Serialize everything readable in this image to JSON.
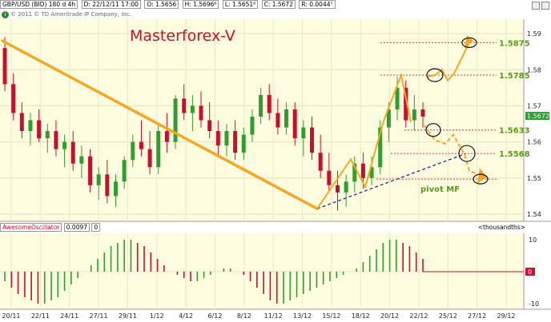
{
  "header": {
    "symbol": "GBP/USD (BID) 180 d 4h",
    "datetime": "D: 22/12/11 17:00",
    "open": "O: 1.5656",
    "high": "H: 1.5696⁶",
    "low": "L: 1.5651⁸",
    "close": "C: 1.5672",
    "range": "R: 0.0044⁷"
  },
  "copyright": "© 2011 © TD Ameritrade IP Company, Inc.",
  "copyright_icon": "info-icon",
  "title": "Masterforex-V",
  "price_axis": {
    "ticks": [
      "1.59",
      "1.58",
      "1.57",
      "1.56",
      "1.55",
      "1.54"
    ],
    "current_price": "1.5672",
    "current_color": "#2e9e2e"
  },
  "levels": [
    {
      "value": "1.5875",
      "price": 1.5875
    },
    {
      "value": "1.5785",
      "price": 1.5785
    },
    {
      "value": "1.5633",
      "price": 1.5633
    },
    {
      "value": "1.5568",
      "price": 1.5568
    }
  ],
  "pivot_label": "pivot MF",
  "pivot_price": 1.5497,
  "x_axis": [
    "20/11",
    "22/11",
    "24/11",
    "27/11",
    "29/11",
    "1/12",
    "4/12",
    "6/12",
    "8/12",
    "11/12",
    "13/12",
    "15/12",
    "18/12",
    "20/12",
    "22/12",
    "25/12",
    "27/12",
    "29/12"
  ],
  "oscillator": {
    "name": "AwesomeOscillator",
    "value": "0.0097",
    "extra": "0",
    "units": "<thousandths>",
    "ticks": [
      "10",
      "0",
      "-10"
    ],
    "zero_label": "0"
  },
  "colors": {
    "chart_bg": "#fffde0",
    "up": "#2e9e2e",
    "down": "#c8102e",
    "trend": "#f5a623",
    "support": "#1f2a9b",
    "level_line": "#e23b3b",
    "level_text": "#5a9a1e",
    "title": "#c8102e"
  },
  "chart_data": {
    "type": "candlestick",
    "price_range": [
      1.538,
      1.594
    ],
    "candles": [
      [
        1.586,
        1.589,
        1.574,
        1.576
      ],
      [
        1.576,
        1.579,
        1.566,
        1.568
      ],
      [
        1.568,
        1.571,
        1.561,
        1.563
      ],
      [
        1.563,
        1.568,
        1.559,
        1.566
      ],
      [
        1.566,
        1.569,
        1.56,
        1.561
      ],
      [
        1.561,
        1.565,
        1.557,
        1.563
      ],
      [
        1.563,
        1.566,
        1.556,
        1.558
      ],
      [
        1.558,
        1.562,
        1.553,
        1.56
      ],
      [
        1.56,
        1.563,
        1.552,
        1.554
      ],
      [
        1.554,
        1.559,
        1.55,
        1.556
      ],
      [
        1.556,
        1.558,
        1.546,
        1.548
      ],
      [
        1.548,
        1.553,
        1.544,
        1.551
      ],
      [
        1.551,
        1.555,
        1.543,
        1.545
      ],
      [
        1.545,
        1.551,
        1.542,
        1.549
      ],
      [
        1.549,
        1.556,
        1.547,
        1.555
      ],
      [
        1.555,
        1.562,
        1.553,
        1.56
      ],
      [
        1.56,
        1.566,
        1.556,
        1.558
      ],
      [
        1.558,
        1.563,
        1.551,
        1.553
      ],
      [
        1.553,
        1.565,
        1.551,
        1.563
      ],
      [
        1.563,
        1.568,
        1.557,
        1.56
      ],
      [
        1.56,
        1.573,
        1.558,
        1.572
      ],
      [
        1.572,
        1.576,
        1.566,
        1.568
      ],
      [
        1.568,
        1.573,
        1.563,
        1.57
      ],
      [
        1.57,
        1.574,
        1.564,
        1.566
      ],
      [
        1.566,
        1.571,
        1.561,
        1.563
      ],
      [
        1.563,
        1.566,
        1.556,
        1.559
      ],
      [
        1.559,
        1.565,
        1.556,
        1.563
      ],
      [
        1.563,
        1.566,
        1.555,
        1.557
      ],
      [
        1.557,
        1.564,
        1.555,
        1.562
      ],
      [
        1.562,
        1.569,
        1.56,
        1.567
      ],
      [
        1.567,
        1.575,
        1.565,
        1.573
      ],
      [
        1.573,
        1.576,
        1.566,
        1.568
      ],
      [
        1.568,
        1.572,
        1.562,
        1.564
      ],
      [
        1.564,
        1.571,
        1.562,
        1.569
      ],
      [
        1.569,
        1.571,
        1.559,
        1.561
      ],
      [
        1.561,
        1.566,
        1.556,
        1.564
      ],
      [
        1.564,
        1.567,
        1.555,
        1.557
      ],
      [
        1.557,
        1.562,
        1.55,
        1.552
      ],
      [
        1.552,
        1.557,
        1.546,
        1.548
      ],
      [
        1.548,
        1.552,
        1.541,
        1.546
      ],
      [
        1.546,
        1.551,
        1.542,
        1.549
      ],
      [
        1.549,
        1.556,
        1.546,
        1.554
      ],
      [
        1.554,
        1.557,
        1.547,
        1.55
      ],
      [
        1.55,
        1.556,
        1.548,
        1.553
      ],
      [
        1.553,
        1.566,
        1.551,
        1.564
      ],
      [
        1.564,
        1.571,
        1.56,
        1.569
      ],
      [
        1.569,
        1.578,
        1.566,
        1.575
      ],
      [
        1.575,
        1.577,
        1.564,
        1.566
      ],
      [
        1.566,
        1.573,
        1.563,
        1.569
      ],
      [
        1.569,
        1.571,
        1.564,
        1.567
      ]
    ],
    "awesome_oscillator": [
      -3,
      -5,
      -7,
      -8,
      -9,
      -10,
      -10,
      -9,
      -8,
      -6,
      -4,
      -2,
      0,
      2,
      4,
      6,
      8,
      9,
      10,
      10,
      9,
      8,
      6,
      4,
      2,
      0,
      -1,
      -2,
      -3,
      -3,
      -2,
      -1,
      0,
      1,
      1,
      0,
      -1,
      -3,
      -5,
      -7,
      -9,
      -10,
      -10,
      -9,
      -8,
      -7,
      -6,
      -5,
      -4,
      -3,
      -2,
      -1,
      0,
      1,
      3,
      5,
      7,
      9,
      10,
      10,
      9,
      8,
      6,
      4
    ]
  }
}
